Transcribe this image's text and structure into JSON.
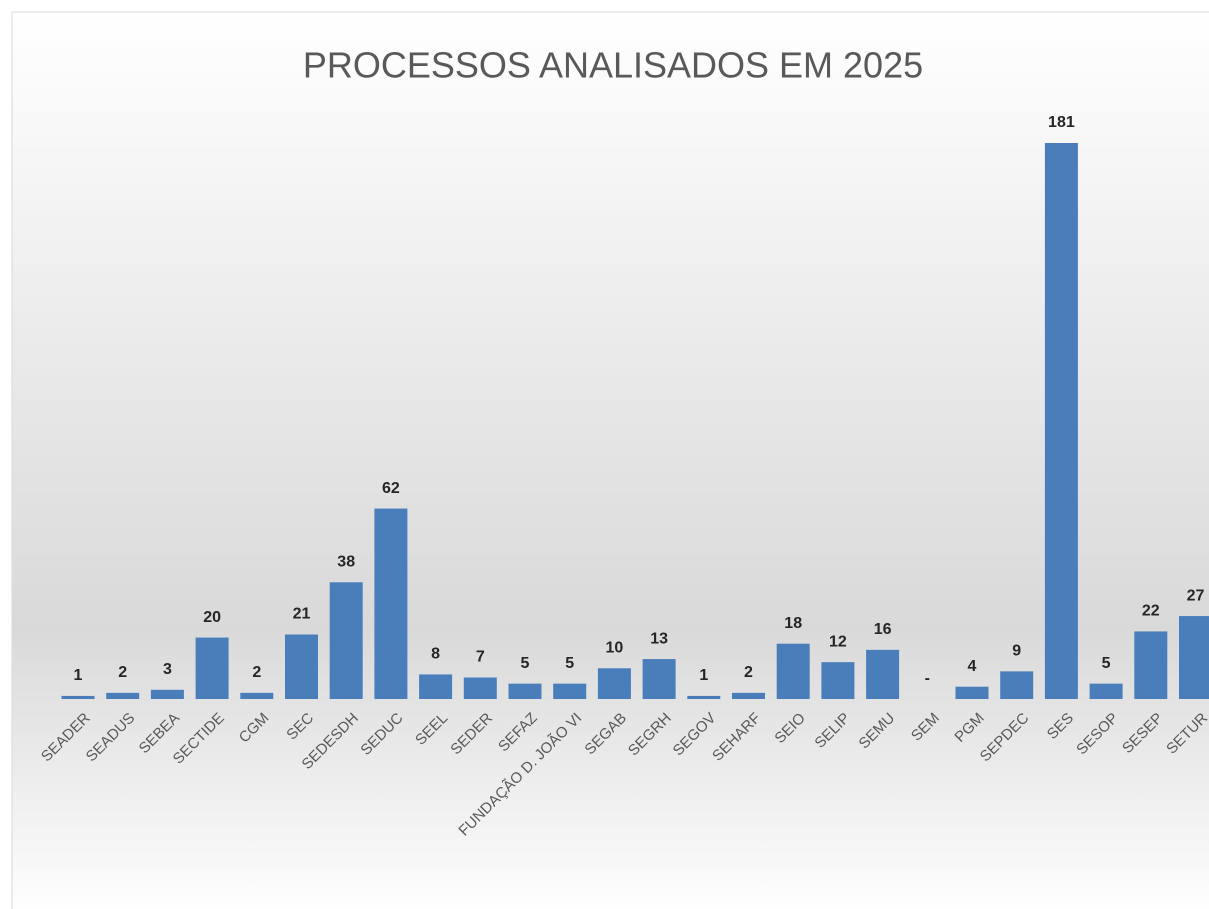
{
  "chart_data": {
    "type": "bar",
    "title": "PROCESSOS ANALISADOS EM 2025",
    "categories": [
      "SEADER",
      "SEADUS",
      "SEBEA",
      "SECTIDE",
      "CGM",
      "SEC",
      "SEDESDH",
      "SEDUC",
      "SEEL",
      "SEDER",
      "SEFAZ",
      "FUNDAÇÃO D. JOÃO VI",
      "SEGAB",
      "SEGRH",
      "SEGOV",
      "SEHARF",
      "SEIO",
      "SELIP",
      "SEMU",
      "SEM",
      "PGM",
      "SEPDEC",
      "SES",
      "SESOP",
      "SESEP",
      "SETUR"
    ],
    "values": [
      1,
      2,
      3,
      20,
      2,
      21,
      38,
      62,
      8,
      7,
      5,
      5,
      10,
      13,
      1,
      2,
      18,
      12,
      16,
      0,
      4,
      9,
      181,
      5,
      22,
      27
    ],
    "value_labels": [
      "1",
      "2",
      "3",
      "20",
      "2",
      "21",
      "38",
      "62",
      "8",
      "7",
      "5",
      "5",
      "10",
      "13",
      "1",
      "2",
      "18",
      "12",
      "16",
      "-",
      "4",
      "9",
      "181",
      "5",
      "22",
      "27"
    ],
    "color": "#4a7ebb"
  }
}
